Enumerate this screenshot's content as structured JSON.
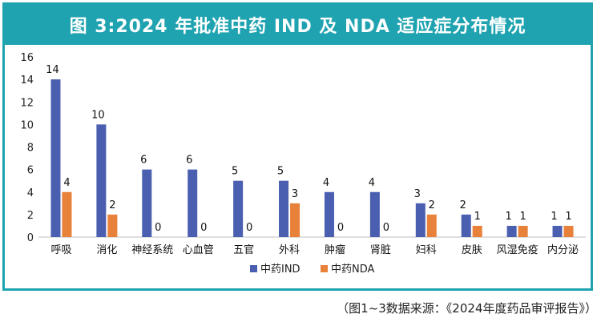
{
  "chart_data": {
    "type": "bar",
    "title": "图 3:2024 年批准中药 IND 及 NDA 适应症分布情况",
    "categories": [
      "呼吸",
      "消化",
      "神经系统",
      "心血管",
      "五官",
      "外科",
      "肿瘤",
      "肾脏",
      "妇科",
      "皮肤",
      "风湿免疫",
      "内分泌"
    ],
    "series": [
      {
        "name": "中药IND",
        "color": "#4a5fb0",
        "values": [
          14,
          10,
          6,
          6,
          5,
          5,
          4,
          4,
          3,
          2,
          1,
          1
        ]
      },
      {
        "name": "中药NDA",
        "color": "#e8823a",
        "values": [
          4,
          2,
          0,
          0,
          0,
          3,
          0,
          0,
          2,
          1,
          1,
          1
        ]
      }
    ],
    "ylim": [
      0,
      16
    ],
    "yticks": [
      0,
      2,
      4,
      6,
      8,
      10,
      12,
      14,
      16
    ],
    "xlabel": "",
    "ylabel": "",
    "legend_position": "bottom-center",
    "grid": false
  },
  "source_note": "（图1~3数据来源：《2024年度药品审评报告》）"
}
